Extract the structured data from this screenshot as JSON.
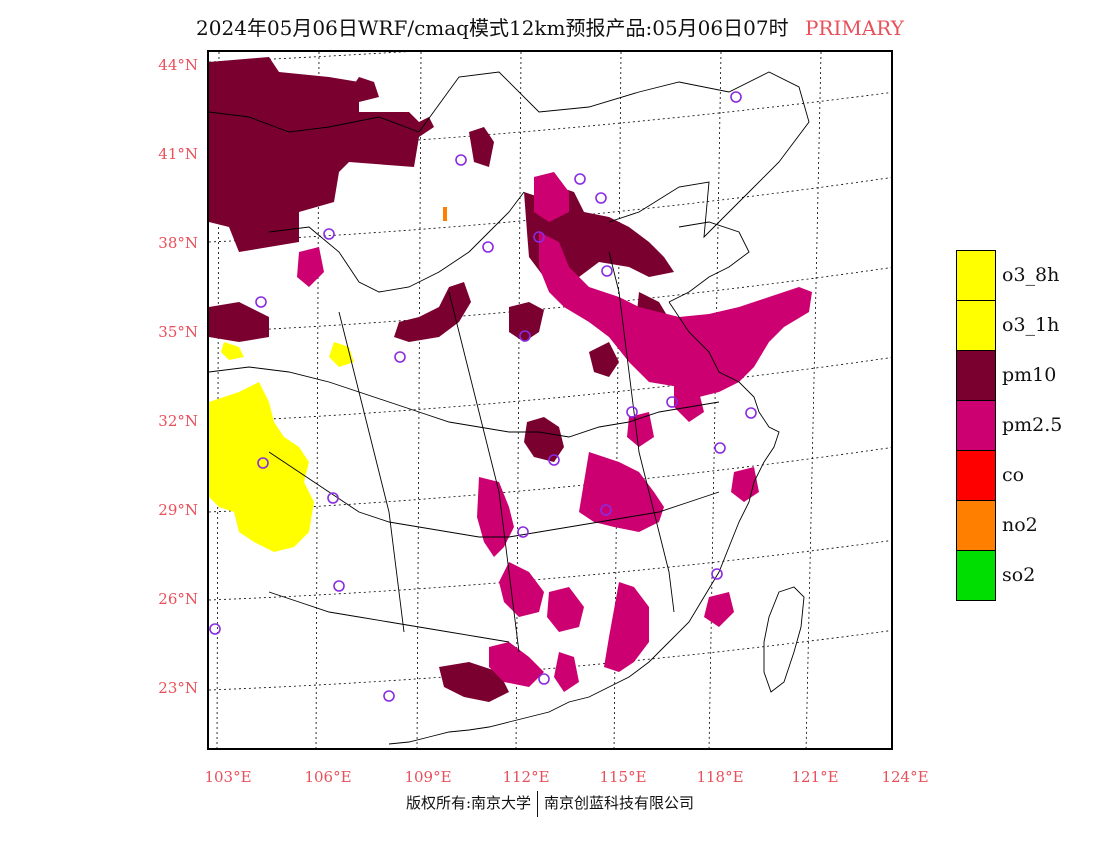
{
  "title": {
    "main": "2024年05月06日WRF/cmaq模式12km预报产品:05月06日07时",
    "code": "PRIMARY"
  },
  "axes": {
    "lat_labels": [
      "44°N",
      "41°N",
      "38°N",
      "35°N",
      "32°N",
      "29°N",
      "26°N",
      "23°N"
    ],
    "lon_labels": [
      "103°E",
      "106°E",
      "109°E",
      "112°E",
      "115°E",
      "118°E",
      "121°E",
      "124°E"
    ]
  },
  "legend": [
    {
      "label": "o3_8h",
      "color": "#ffff00"
    },
    {
      "label": "o3_1h",
      "color": "#ffff00"
    },
    {
      "label": "pm10",
      "color": "#7a0030"
    },
    {
      "label": "pm2.5",
      "color": "#cc0070"
    },
    {
      "label": "co",
      "color": "#ff0000"
    },
    {
      "label": "no2",
      "color": "#ff8000"
    },
    {
      "label": "so2",
      "color": "#00dd00"
    }
  ],
  "footer": {
    "left": "版权所有:南京大学",
    "right": "南京创蓝科技有限公司"
  },
  "colors": {
    "accent": "#e8505b",
    "station": "#8a2be2"
  }
}
